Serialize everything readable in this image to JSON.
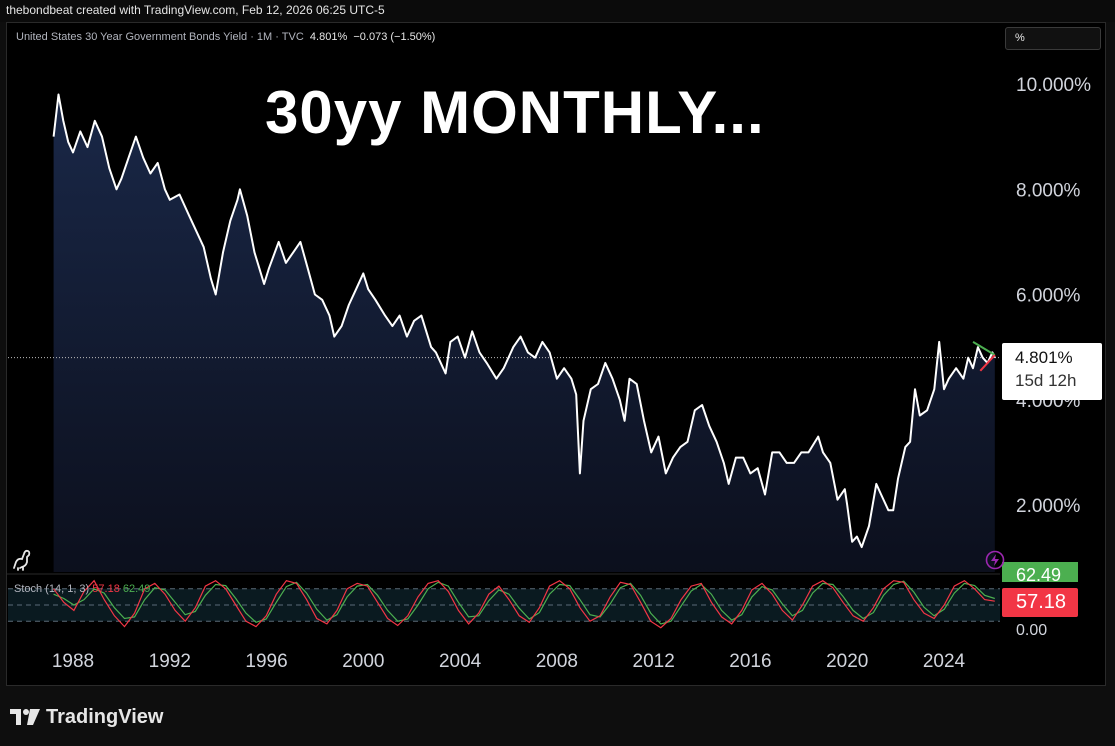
{
  "header": {
    "attribution": "thebondbeat created with TradingView.com, Feb 12, 2026 06:25 UTC-5"
  },
  "legend": {
    "symbol": "United States 30 Year Government Bonds Yield · 1M · TVC",
    "value": "4.801%",
    "change": "−0.073 (−1.50%)"
  },
  "scale_button": "%",
  "title": "30yy MONTHLY...",
  "price_label": {
    "value": "4.801%",
    "countdown": "15d 12h"
  },
  "stoch": {
    "name": "Stoch (14, 1, 3)",
    "k_value": "57.18",
    "d_value": "62.49",
    "k_badge": "57.18",
    "d_badge": "62.49",
    "zero_label": "0.00"
  },
  "footer": {
    "brand": "TradingView"
  },
  "colors": {
    "price_line": "#ffffff",
    "area_top": "#1b2a4c",
    "stoch_k": "#f23645",
    "stoch_d": "#4caf50",
    "trend_green": "#4caf50",
    "trend_red": "#f23645"
  },
  "icons": [
    "dinosaur-icon",
    "lightning-icon",
    "tradingview-logo-icon"
  ],
  "chart_data": [
    {
      "type": "area",
      "x_ticks": [
        "1988",
        "1992",
        "1996",
        "2000",
        "2004",
        "2008",
        "2012",
        "2016",
        "2020",
        "2024"
      ],
      "y_ticks": [
        "10.000%",
        "8.000%",
        "6.000%",
        "4.000%",
        "2.000%"
      ],
      "ylim": [
        1.0,
        10.8
      ],
      "series": [
        {
          "values": [
            [
              1987.2,
              9.0
            ],
            [
              1987.4,
              9.8
            ],
            [
              1987.6,
              9.3
            ],
            [
              1987.8,
              8.9
            ],
            [
              1988.0,
              8.7
            ],
            [
              1988.3,
              9.1
            ],
            [
              1988.6,
              8.8
            ],
            [
              1988.9,
              9.3
            ],
            [
              1989.2,
              9.0
            ],
            [
              1989.5,
              8.4
            ],
            [
              1989.8,
              8.0
            ],
            [
              1990.0,
              8.2
            ],
            [
              1990.3,
              8.6
            ],
            [
              1990.6,
              9.0
            ],
            [
              1990.9,
              8.6
            ],
            [
              1991.2,
              8.3
            ],
            [
              1991.5,
              8.5
            ],
            [
              1991.8,
              8.0
            ],
            [
              1992.0,
              7.8
            ],
            [
              1992.4,
              7.9
            ],
            [
              1992.8,
              7.5
            ],
            [
              1993.1,
              7.2
            ],
            [
              1993.4,
              6.9
            ],
            [
              1993.7,
              6.3
            ],
            [
              1993.9,
              6.0
            ],
            [
              1994.2,
              6.8
            ],
            [
              1994.5,
              7.4
            ],
            [
              1994.8,
              7.8
            ],
            [
              1994.9,
              8.0
            ],
            [
              1995.2,
              7.5
            ],
            [
              1995.5,
              6.8
            ],
            [
              1995.9,
              6.2
            ],
            [
              1996.1,
              6.5
            ],
            [
              1996.5,
              7.0
            ],
            [
              1996.8,
              6.6
            ],
            [
              1997.1,
              6.8
            ],
            [
              1997.4,
              7.0
            ],
            [
              1997.7,
              6.5
            ],
            [
              1998.0,
              6.0
            ],
            [
              1998.3,
              5.9
            ],
            [
              1998.6,
              5.6
            ],
            [
              1998.8,
              5.2
            ],
            [
              1999.1,
              5.4
            ],
            [
              1999.4,
              5.8
            ],
            [
              1999.7,
              6.1
            ],
            [
              2000.0,
              6.4
            ],
            [
              2000.2,
              6.1
            ],
            [
              2000.5,
              5.9
            ],
            [
              2000.9,
              5.6
            ],
            [
              2001.2,
              5.4
            ],
            [
              2001.5,
              5.6
            ],
            [
              2001.8,
              5.2
            ],
            [
              2002.1,
              5.5
            ],
            [
              2002.4,
              5.6
            ],
            [
              2002.8,
              5.0
            ],
            [
              2003.0,
              4.9
            ],
            [
              2003.4,
              4.5
            ],
            [
              2003.6,
              5.1
            ],
            [
              2003.9,
              5.2
            ],
            [
              2004.2,
              4.8
            ],
            [
              2004.5,
              5.3
            ],
            [
              2004.8,
              4.9
            ],
            [
              2005.1,
              4.7
            ],
            [
              2005.5,
              4.4
            ],
            [
              2005.8,
              4.6
            ],
            [
              2006.2,
              5.0
            ],
            [
              2006.5,
              5.2
            ],
            [
              2006.8,
              4.9
            ],
            [
              2007.1,
              4.8
            ],
            [
              2007.4,
              5.1
            ],
            [
              2007.7,
              4.9
            ],
            [
              2008.0,
              4.4
            ],
            [
              2008.3,
              4.6
            ],
            [
              2008.6,
              4.4
            ],
            [
              2008.8,
              4.1
            ],
            [
              2008.95,
              2.6
            ],
            [
              2009.1,
              3.6
            ],
            [
              2009.4,
              4.2
            ],
            [
              2009.7,
              4.3
            ],
            [
              2010.0,
              4.7
            ],
            [
              2010.3,
              4.4
            ],
            [
              2010.6,
              4.0
            ],
            [
              2010.8,
              3.6
            ],
            [
              2011.0,
              4.4
            ],
            [
              2011.3,
              4.3
            ],
            [
              2011.6,
              3.6
            ],
            [
              2011.9,
              3.0
            ],
            [
              2012.2,
              3.3
            ],
            [
              2012.5,
              2.6
            ],
            [
              2012.8,
              2.9
            ],
            [
              2013.1,
              3.1
            ],
            [
              2013.4,
              3.2
            ],
            [
              2013.7,
              3.8
            ],
            [
              2014.0,
              3.9
            ],
            [
              2014.3,
              3.5
            ],
            [
              2014.6,
              3.2
            ],
            [
              2014.9,
              2.8
            ],
            [
              2015.1,
              2.4
            ],
            [
              2015.4,
              2.9
            ],
            [
              2015.7,
              2.9
            ],
            [
              2016.0,
              2.6
            ],
            [
              2016.3,
              2.7
            ],
            [
              2016.6,
              2.2
            ],
            [
              2016.9,
              3.0
            ],
            [
              2017.2,
              3.0
            ],
            [
              2017.5,
              2.8
            ],
            [
              2017.8,
              2.8
            ],
            [
              2018.1,
              3.0
            ],
            [
              2018.4,
              3.0
            ],
            [
              2018.8,
              3.3
            ],
            [
              2019.0,
              3.0
            ],
            [
              2019.3,
              2.8
            ],
            [
              2019.6,
              2.1
            ],
            [
              2019.9,
              2.3
            ],
            [
              2020.0,
              2.0
            ],
            [
              2020.2,
              1.3
            ],
            [
              2020.4,
              1.4
            ],
            [
              2020.6,
              1.2
            ],
            [
              2020.9,
              1.6
            ],
            [
              2021.2,
              2.4
            ],
            [
              2021.4,
              2.2
            ],
            [
              2021.7,
              1.9
            ],
            [
              2021.9,
              1.9
            ],
            [
              2022.1,
              2.5
            ],
            [
              2022.4,
              3.1
            ],
            [
              2022.6,
              3.2
            ],
            [
              2022.8,
              4.2
            ],
            [
              2023.0,
              3.7
            ],
            [
              2023.3,
              3.8
            ],
            [
              2023.6,
              4.2
            ],
            [
              2023.8,
              5.1
            ],
            [
              2024.0,
              4.2
            ],
            [
              2024.2,
              4.4
            ],
            [
              2024.5,
              4.6
            ],
            [
              2024.8,
              4.4
            ],
            [
              2025.0,
              4.8
            ],
            [
              2025.2,
              4.6
            ],
            [
              2025.4,
              5.0
            ],
            [
              2025.6,
              4.8
            ],
            [
              2025.8,
              4.7
            ],
            [
              2026.0,
              4.9
            ],
            [
              2026.1,
              4.8
            ]
          ]
        }
      ]
    },
    {
      "type": "line",
      "title": "Stoch (14, 1, 3)",
      "ylim": [
        0,
        100
      ],
      "x_range": [
        1987.2,
        2026.1
      ],
      "series": [
        {
          "name": "57.18",
          "values": [
            80,
            55,
            40,
            75,
            95,
            60,
            30,
            10,
            35,
            80,
            90,
            70,
            40,
            20,
            45,
            85,
            95,
            80,
            50,
            20,
            10,
            30,
            70,
            95,
            90,
            60,
            25,
            15,
            40,
            80,
            90,
            85,
            55,
            25,
            12,
            30,
            65,
            90,
            95,
            75,
            40,
            15,
            35,
            70,
            85,
            60,
            30,
            18,
            45,
            85,
            95,
            80,
            45,
            20,
            30,
            65,
            92,
            88,
            55,
            20,
            8,
            25,
            60,
            85,
            90,
            55,
            28,
            15,
            40,
            78,
            90,
            70,
            40,
            22,
            50,
            85,
            95,
            82,
            55,
            30,
            20,
            45,
            80,
            95,
            92,
            60,
            35,
            25,
            50,
            85,
            95,
            80,
            60,
            57
          ]
        },
        {
          "name": "62.49",
          "values": [
            70,
            62,
            50,
            60,
            80,
            72,
            45,
            25,
            28,
            60,
            82,
            78,
            55,
            32,
            38,
            68,
            88,
            86,
            62,
            35,
            18,
            24,
            55,
            84,
            92,
            72,
            42,
            22,
            32,
            65,
            85,
            88,
            68,
            40,
            20,
            24,
            50,
            80,
            92,
            85,
            55,
            28,
            30,
            58,
            78,
            70,
            44,
            24,
            36,
            70,
            88,
            86,
            60,
            32,
            28,
            52,
            82,
            90,
            68,
            35,
            15,
            20,
            48,
            76,
            88,
            70,
            40,
            22,
            32,
            65,
            84,
            78,
            52,
            30,
            40,
            72,
            90,
            88,
            66,
            40,
            25,
            36,
            68,
            88,
            94,
            74,
            46,
            30,
            42,
            72,
            90,
            86,
            68,
            62
          ]
        }
      ]
    }
  ]
}
